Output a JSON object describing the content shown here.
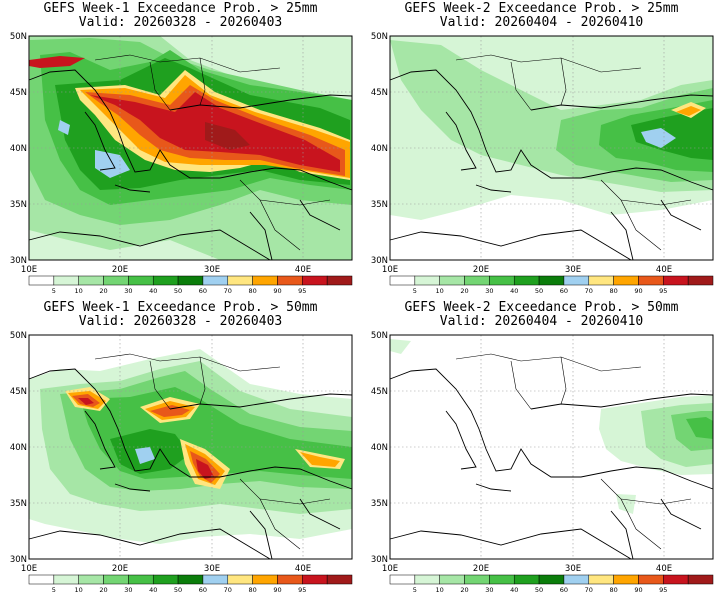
{
  "colorbar": {
    "labels": [
      "5",
      "10",
      "20",
      "30",
      "40",
      "50",
      "60",
      "70",
      "80",
      "90",
      "95"
    ],
    "colors": [
      "#ffffff",
      "#d6f5d6",
      "#a6e6a6",
      "#73d573",
      "#46c046",
      "#1fa01f",
      "#0b7d0b",
      "#a0d0f0",
      "#ffe680",
      "#ffa500",
      "#e8581a",
      "#c8141e",
      "#a01a1a"
    ]
  },
  "axes": {
    "lat_labels": [
      "50N",
      "45N",
      "40N",
      "35N",
      "30N"
    ],
    "lon_labels": [
      "10E",
      "20E",
      "30E",
      "40E"
    ]
  },
  "panels": [
    {
      "title1": "GEFS Week-1 Exceedance Prob. > 25mm",
      "title2": "Valid: 20260328 - 20260403"
    },
    {
      "title1": "GEFS Week-2 Exceedance Prob. > 25mm",
      "title2": "Valid: 20260404 - 20260410"
    },
    {
      "title1": "GEFS Week-1 Exceedance Prob. > 50mm",
      "title2": "Valid: 20260328 - 20260403"
    },
    {
      "title1": "GEFS Week-2 Exceedance Prob. > 50mm",
      "title2": "Valid: 20260404 - 20260410"
    }
  ]
}
